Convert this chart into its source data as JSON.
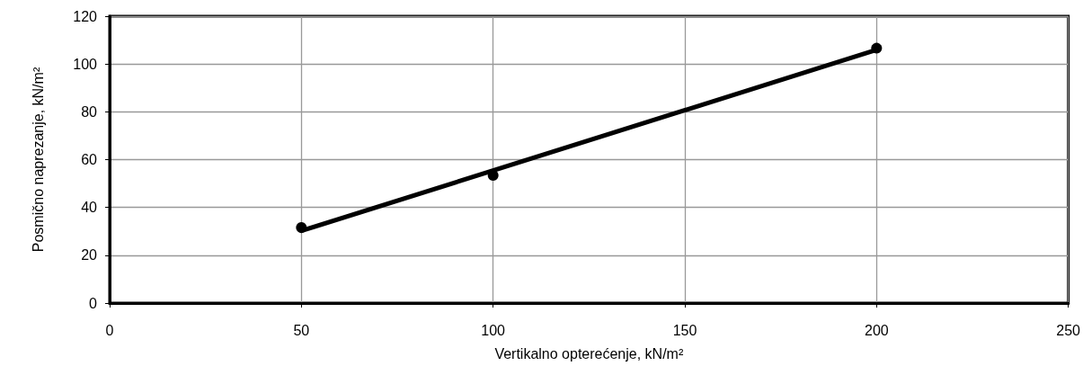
{
  "chart_data": {
    "type": "scatter",
    "xlabel": "Vertikalno opterećenje, kN/m²",
    "ylabel": "Posmično naprezanje, kN/m²",
    "series": [
      {
        "color": "#000000",
        "x": [
          50,
          100,
          200
        ],
        "values": [
          31.6,
          53.4,
          106.6
        ],
        "marker": "circle"
      },
      {
        "type": "line",
        "color": "#000000",
        "x": [
          50,
          200
        ],
        "values": [
          30.2,
          105.9
        ],
        "marker": "none",
        "line_style": "solid"
      }
    ],
    "xlim": [
      0,
      250
    ],
    "xticks": [
      0,
      50,
      100,
      150,
      200,
      250
    ],
    "ylim": [
      0,
      120
    ],
    "yticks": [
      0,
      20,
      40,
      60,
      80,
      100,
      120
    ],
    "grid": true
  }
}
